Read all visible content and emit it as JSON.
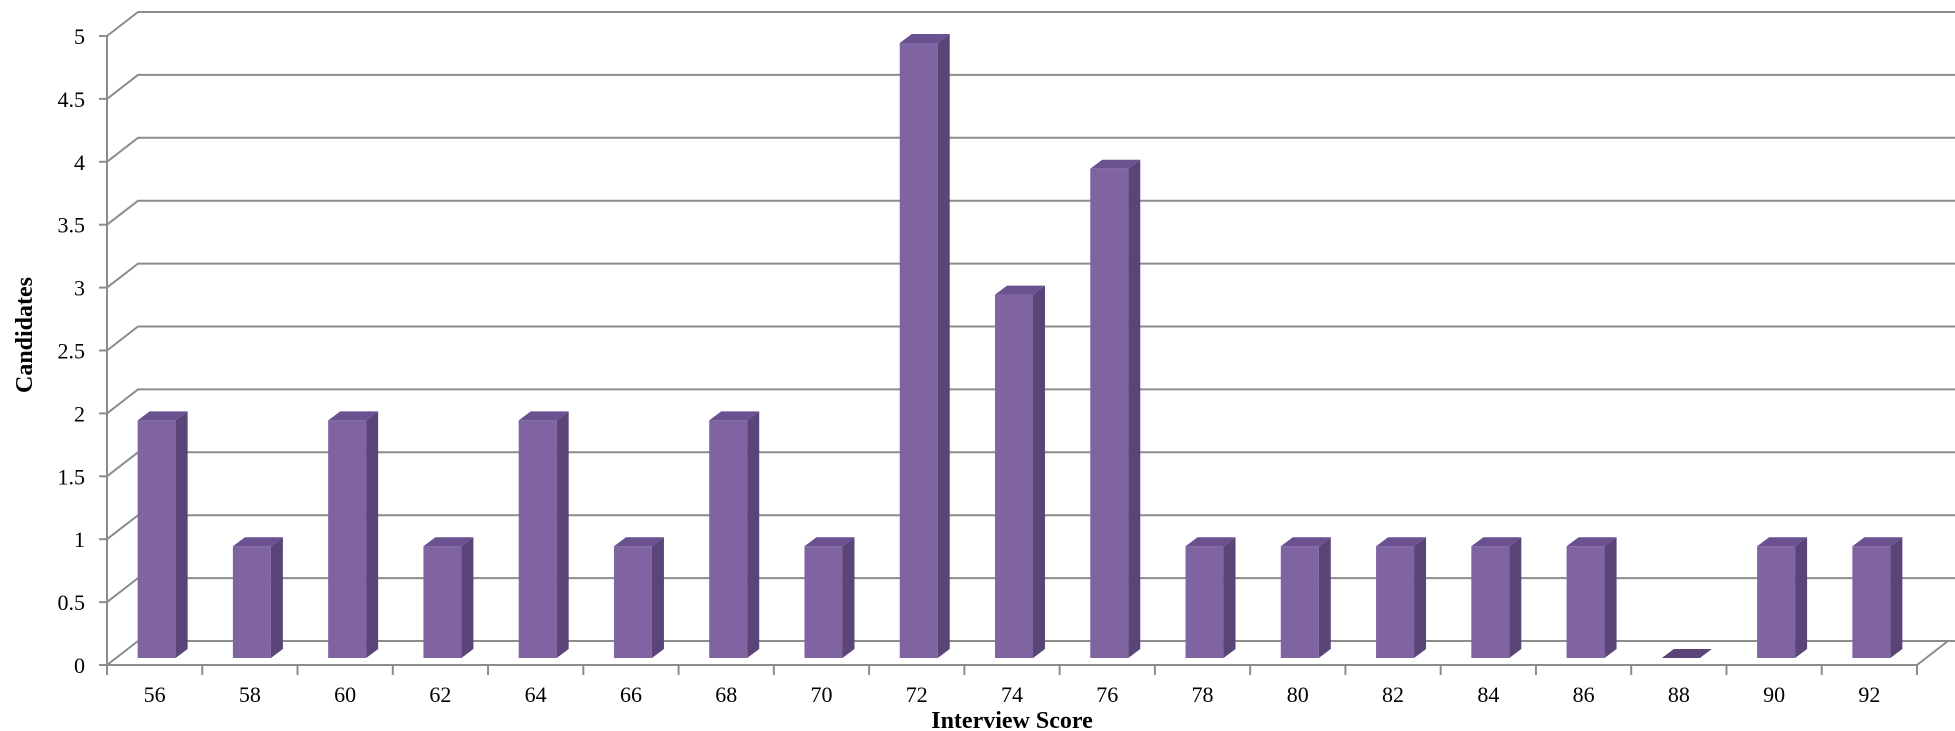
{
  "chart_data": {
    "type": "bar",
    "style": "3d-column",
    "xlabel": "Interview Score",
    "ylabel": "Candidates",
    "categories": [
      "56",
      "58",
      "60",
      "62",
      "64",
      "66",
      "68",
      "70",
      "72",
      "74",
      "76",
      "78",
      "80",
      "82",
      "84",
      "86",
      "88",
      "90",
      "92"
    ],
    "series": [
      {
        "values": [
          2,
          1,
          2,
          1,
          2,
          1,
          2,
          1,
          5,
          3,
          4,
          1,
          1,
          1,
          1,
          1,
          0,
          1,
          1
        ]
      }
    ],
    "ylim": [
      0,
      5
    ],
    "yticks": [
      "0",
      "0.5",
      "1",
      "1.5",
      "2",
      "2.5",
      "3",
      "3.5",
      "4",
      "4.5",
      "5"
    ],
    "grid": true,
    "legend": "none",
    "colors": {
      "bar_front": "#8064a2",
      "bar_side": "#5b4578",
      "bar_top": "#6a5190",
      "grid": "#8c8c8c"
    }
  }
}
